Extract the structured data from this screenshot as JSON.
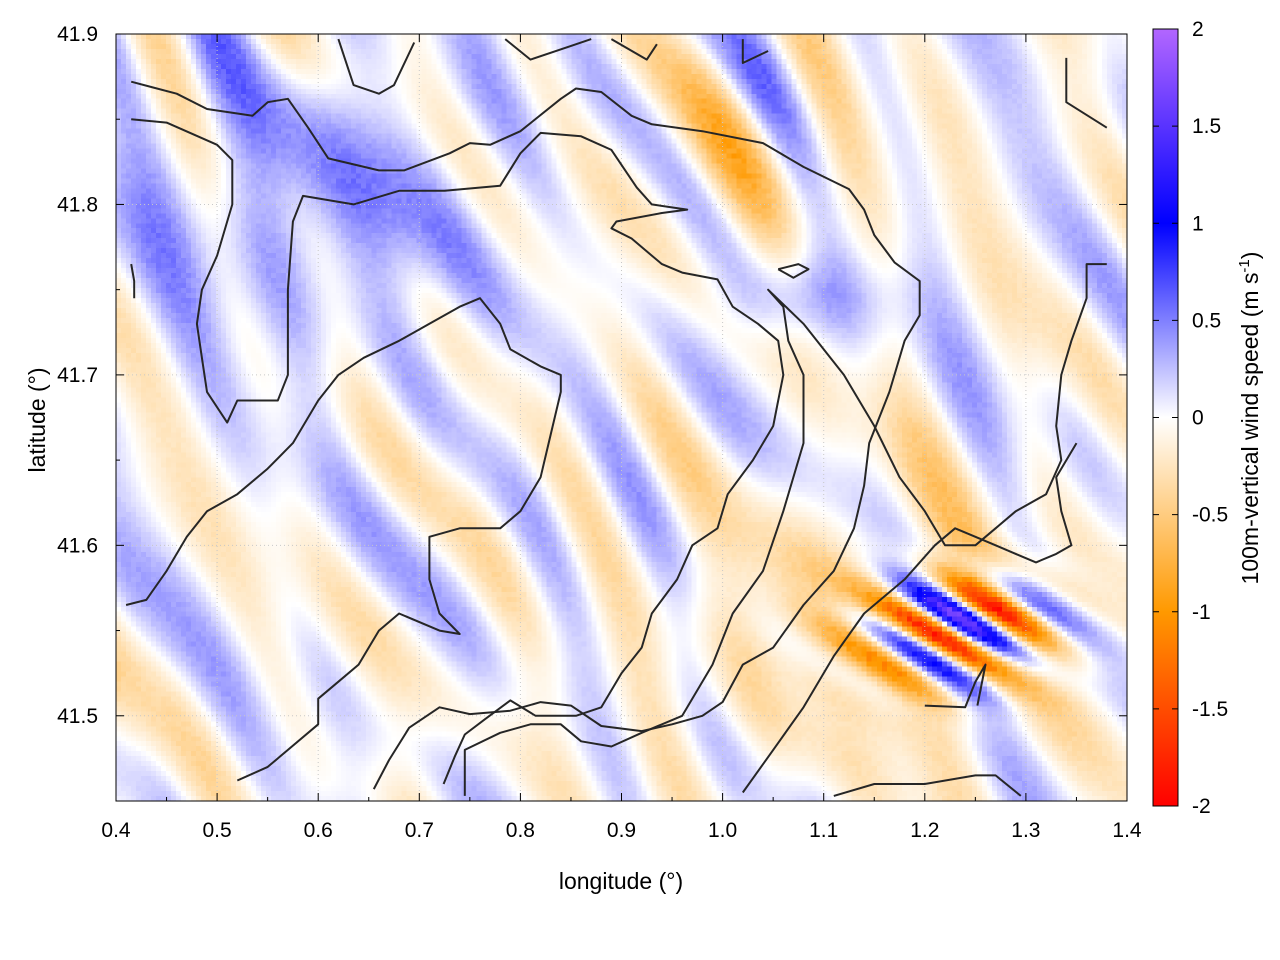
{
  "chart_data": {
    "type": "heatmap",
    "xlabel": "longitude (°)",
    "ylabel": "latitude (°)",
    "colorbar_label": "100m-vertical wind speed (m s",
    "colorbar_label_sup": "-1",
    "colorbar_label_close": ")",
    "xlim": [
      0.4,
      1.4
    ],
    "ylim": [
      41.45,
      41.9
    ],
    "zlim": [
      -2,
      2
    ],
    "x_ticks": [
      0.4,
      0.5,
      0.6,
      0.7,
      0.8,
      0.9,
      1.0,
      1.1,
      1.2,
      1.3,
      1.4
    ],
    "x_tick_labels": [
      "0.4",
      "0.5",
      "0.6",
      "0.7",
      "0.8",
      "0.9",
      "1.0",
      "1.1",
      "1.2",
      "1.3",
      "1.4"
    ],
    "y_ticks": [
      41.5,
      41.6,
      41.7,
      41.8,
      41.9
    ],
    "y_tick_labels": [
      "41.5",
      "41.6",
      "41.7",
      "41.8",
      "41.9"
    ],
    "colorbar_ticks": [
      2,
      1.5,
      1,
      0.5,
      0,
      -0.5,
      -1,
      -1.5,
      -2
    ],
    "colorbar_tick_labels": [
      "2",
      "1.5",
      "1",
      "0.5",
      "0",
      "-0.5",
      "-1",
      "-1.5",
      "-2"
    ],
    "colormap": [
      "#ff0000",
      "#ff9900",
      "#ffffff",
      "#0000ff",
      "#b266ff"
    ],
    "grid": true,
    "contours": [
      [
        [
          0.415,
          41.872
        ],
        [
          0.46,
          41.865
        ],
        [
          0.49,
          41.856
        ],
        [
          0.535,
          41.852
        ],
        [
          0.55,
          41.86
        ],
        [
          0.57,
          41.862
        ],
        [
          0.59,
          41.845
        ],
        [
          0.61,
          41.827
        ],
        [
          0.66,
          41.82
        ],
        [
          0.685,
          41.82
        ],
        [
          0.73,
          41.83
        ],
        [
          0.75,
          41.836
        ],
        [
          0.77,
          41.835
        ],
        [
          0.8,
          41.843
        ],
        [
          0.84,
          41.862
        ],
        [
          0.855,
          41.868
        ],
        [
          0.88,
          41.866
        ],
        [
          0.91,
          41.852
        ],
        [
          0.93,
          41.847
        ],
        [
          0.98,
          41.843
        ],
        [
          1.04,
          41.836
        ],
        [
          1.08,
          41.822
        ],
        [
          1.125,
          41.809
        ],
        [
          1.14,
          41.797
        ],
        [
          1.15,
          41.782
        ],
        [
          1.17,
          41.766
        ],
        [
          1.195,
          41.755
        ],
        [
          1.195,
          41.735
        ],
        [
          1.18,
          41.72
        ],
        [
          1.165,
          41.69
        ],
        [
          1.145,
          41.66
        ],
        [
          1.14,
          41.635
        ],
        [
          1.13,
          41.61
        ],
        [
          1.11,
          41.585
        ],
        [
          1.08,
          41.565
        ],
        [
          1.05,
          41.54
        ],
        [
          1.02,
          41.53
        ],
        [
          1.0,
          41.508
        ],
        [
          0.98,
          41.5
        ],
        [
          0.95,
          41.495
        ],
        [
          0.92,
          41.491
        ],
        [
          0.88,
          41.494
        ],
        [
          0.85,
          41.506
        ],
        [
          0.82,
          41.508
        ],
        [
          0.79,
          41.503
        ],
        [
          0.75,
          41.501
        ],
        [
          0.72,
          41.505
        ],
        [
          0.69,
          41.493
        ],
        [
          0.67,
          41.474
        ],
        [
          0.655,
          41.457
        ]
      ],
      [
        [
          0.415,
          41.85
        ],
        [
          0.45,
          41.848
        ],
        [
          0.5,
          41.835
        ],
        [
          0.515,
          41.826
        ],
        [
          0.515,
          41.8
        ],
        [
          0.51,
          41.79
        ],
        [
          0.5,
          41.77
        ],
        [
          0.485,
          41.75
        ],
        [
          0.48,
          41.73
        ],
        [
          0.485,
          41.71
        ],
        [
          0.49,
          41.69
        ],
        [
          0.51,
          41.672
        ],
        [
          0.52,
          41.685
        ],
        [
          0.56,
          41.685
        ],
        [
          0.57,
          41.7
        ],
        [
          0.57,
          41.725
        ],
        [
          0.57,
          41.75
        ],
        [
          0.575,
          41.79
        ],
        [
          0.585,
          41.805
        ],
        [
          0.635,
          41.8
        ],
        [
          0.68,
          41.808
        ],
        [
          0.725,
          41.808
        ],
        [
          0.78,
          41.811
        ],
        [
          0.8,
          41.83
        ],
        [
          0.82,
          41.842
        ],
        [
          0.86,
          41.84
        ],
        [
          0.89,
          41.832
        ],
        [
          0.915,
          41.81
        ],
        [
          0.93,
          41.8
        ],
        [
          0.965,
          41.797
        ],
        [
          0.94,
          41.795
        ],
        [
          0.895,
          41.79
        ],
        [
          0.89,
          41.786
        ],
        [
          0.91,
          41.78
        ],
        [
          0.93,
          41.77
        ],
        [
          0.94,
          41.765
        ],
        [
          0.96,
          41.76
        ],
        [
          0.995,
          41.756
        ],
        [
          1.01,
          41.74
        ],
        [
          1.035,
          41.73
        ],
        [
          1.055,
          41.72
        ],
        [
          1.06,
          41.7
        ],
        [
          1.055,
          41.685
        ],
        [
          1.05,
          41.67
        ],
        [
          1.03,
          41.65
        ],
        [
          1.005,
          41.63
        ],
        [
          0.995,
          41.61
        ],
        [
          0.97,
          41.6
        ],
        [
          0.955,
          41.58
        ],
        [
          0.93,
          41.56
        ],
        [
          0.92,
          41.54
        ],
        [
          0.9,
          41.525
        ],
        [
          0.88,
          41.505
        ],
        [
          0.855,
          41.5
        ],
        [
          0.815,
          41.5
        ],
        [
          0.79,
          41.509
        ],
        [
          0.765,
          41.498
        ],
        [
          0.745,
          41.489
        ],
        [
          0.735,
          41.476
        ],
        [
          0.724,
          41.46
        ]
      ],
      [
        [
          0.41,
          41.565
        ],
        [
          0.43,
          41.568
        ],
        [
          0.45,
          41.585
        ],
        [
          0.47,
          41.605
        ],
        [
          0.49,
          41.62
        ],
        [
          0.52,
          41.63
        ],
        [
          0.55,
          41.645
        ],
        [
          0.575,
          41.66
        ],
        [
          0.6,
          41.685
        ],
        [
          0.62,
          41.7
        ],
        [
          0.645,
          41.71
        ],
        [
          0.68,
          41.72
        ],
        [
          0.71,
          41.73
        ],
        [
          0.74,
          41.74
        ],
        [
          0.76,
          41.745
        ],
        [
          0.78,
          41.73
        ],
        [
          0.79,
          41.715
        ],
        [
          0.82,
          41.705
        ],
        [
          0.84,
          41.7
        ],
        [
          0.84,
          41.69
        ],
        [
          0.83,
          41.665
        ],
        [
          0.82,
          41.64
        ],
        [
          0.8,
          41.62
        ],
        [
          0.78,
          41.61
        ],
        [
          0.74,
          41.61
        ],
        [
          0.71,
          41.605
        ],
        [
          0.71,
          41.58
        ],
        [
          0.72,
          41.56
        ],
        [
          0.74,
          41.548
        ],
        [
          0.72,
          41.55
        ],
        [
          0.68,
          41.56
        ],
        [
          0.66,
          41.55
        ],
        [
          0.64,
          41.53
        ],
        [
          0.62,
          41.52
        ],
        [
          0.6,
          41.51
        ],
        [
          0.6,
          41.495
        ],
        [
          0.57,
          41.48
        ],
        [
          0.55,
          41.47
        ],
        [
          0.52,
          41.462
        ]
      ],
      [
        [
          0.745,
          41.453
        ],
        [
          0.745,
          41.48
        ],
        [
          0.78,
          41.49
        ],
        [
          0.81,
          41.495
        ],
        [
          0.84,
          41.495
        ],
        [
          0.86,
          41.485
        ],
        [
          0.89,
          41.482
        ],
        [
          0.92,
          41.49
        ],
        [
          0.96,
          41.5
        ],
        [
          0.99,
          41.53
        ],
        [
          1.01,
          41.56
        ],
        [
          1.04,
          41.585
        ],
        [
          1.06,
          41.62
        ],
        [
          1.08,
          41.66
        ],
        [
          1.08,
          41.7
        ],
        [
          1.065,
          41.72
        ],
        [
          1.06,
          41.74
        ],
        [
          1.045,
          41.75
        ],
        [
          1.08,
          41.73
        ],
        [
          1.12,
          41.7
        ],
        [
          1.15,
          41.67
        ],
        [
          1.175,
          41.64
        ],
        [
          1.2,
          41.62
        ],
        [
          1.22,
          41.6
        ],
        [
          1.25,
          41.6
        ],
        [
          1.27,
          41.61
        ],
        [
          1.29,
          41.62
        ],
        [
          1.32,
          41.63
        ],
        [
          1.335,
          41.65
        ],
        [
          1.33,
          41.67
        ],
        [
          1.335,
          41.7
        ],
        [
          1.345,
          41.72
        ],
        [
          1.36,
          41.745
        ],
        [
          1.36,
          41.765
        ],
        [
          1.38,
          41.765
        ]
      ],
      [
        [
          1.02,
          41.455
        ],
        [
          1.05,
          41.48
        ],
        [
          1.08,
          41.505
        ],
        [
          1.11,
          41.535
        ],
        [
          1.14,
          41.56
        ],
        [
          1.18,
          41.58
        ],
        [
          1.21,
          41.6
        ],
        [
          1.23,
          41.61
        ],
        [
          1.25,
          41.605
        ],
        [
          1.27,
          41.6
        ],
        [
          1.29,
          41.595
        ],
        [
          1.31,
          41.59
        ],
        [
          1.33,
          41.595
        ],
        [
          1.345,
          41.6
        ],
        [
          1.335,
          41.62
        ],
        [
          1.33,
          41.64
        ],
        [
          1.35,
          41.66
        ]
      ],
      [
        [
          1.11,
          41.453
        ],
        [
          1.15,
          41.46
        ],
        [
          1.2,
          41.46
        ],
        [
          1.25,
          41.465
        ],
        [
          1.27,
          41.465
        ],
        [
          1.295,
          41.453
        ]
      ],
      [
        [
          1.2,
          41.506
        ],
        [
          1.24,
          41.505
        ],
        [
          1.25,
          41.52
        ],
        [
          1.26,
          41.53
        ],
        [
          1.252,
          41.506
        ]
      ],
      [
        [
          1.055,
          41.762
        ],
        [
          1.075,
          41.765
        ],
        [
          1.085,
          41.762
        ],
        [
          1.07,
          41.757
        ],
        [
          1.055,
          41.762
        ]
      ],
      [
        [
          0.62,
          41.897
        ],
        [
          0.635,
          41.87
        ],
        [
          0.66,
          41.865
        ],
        [
          0.675,
          41.87
        ],
        [
          0.695,
          41.895
        ]
      ],
      [
        [
          0.785,
          41.897
        ],
        [
          0.81,
          41.885
        ],
        [
          0.85,
          41.893
        ],
        [
          0.87,
          41.897
        ]
      ],
      [
        [
          0.89,
          41.897
        ],
        [
          0.925,
          41.885
        ],
        [
          0.935,
          41.894
        ]
      ],
      [
        [
          1.02,
          41.897
        ],
        [
          1.02,
          41.883
        ],
        [
          1.045,
          41.89
        ]
      ],
      [
        [
          1.34,
          41.886
        ],
        [
          1.34,
          41.86
        ],
        [
          1.38,
          41.845
        ]
      ],
      [
        [
          0.415,
          41.765
        ],
        [
          0.418,
          41.755
        ],
        [
          0.418,
          41.745
        ]
      ]
    ]
  }
}
